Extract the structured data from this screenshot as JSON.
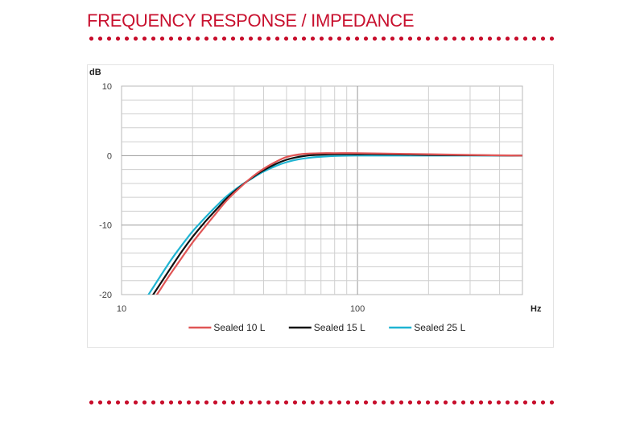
{
  "page": {
    "title": "FREQUENCY RESPONSE / IMPEDANCE",
    "accent_color": "#c8102e"
  },
  "chart_data": {
    "type": "line",
    "title": "",
    "xlabel": "Hz",
    "ylabel": "dB",
    "xscale": "log",
    "xlim": [
      10,
      500
    ],
    "ylim": [
      -20,
      10
    ],
    "x_ticks": [
      10,
      100
    ],
    "x_tick_labels": [
      "10",
      "100"
    ],
    "y_ticks": [
      10,
      0,
      -10,
      -20
    ],
    "y_tick_labels": [
      "10",
      "0",
      "-10",
      "-20"
    ],
    "grid": true,
    "legend_position": "bottom",
    "series": [
      {
        "name": "Sealed 10 L",
        "color": "#e05555",
        "x": [
          14,
          16,
          18,
          20,
          22.5,
          25,
          28,
          32,
          36,
          40,
          45,
          50,
          56,
          63,
          71,
          80,
          100,
          125,
          160,
          200,
          300,
          500
        ],
        "y": [
          -20.2,
          -17.2,
          -14.7,
          -12.5,
          -10.3,
          -8.4,
          -6.4,
          -4.5,
          -3.0,
          -1.9,
          -0.9,
          -0.2,
          0.15,
          0.3,
          0.35,
          0.35,
          0.35,
          0.3,
          0.25,
          0.2,
          0.1,
          0.0
        ]
      },
      {
        "name": "Sealed 15 L",
        "color": "#111111",
        "x": [
          13.5,
          16,
          18,
          20,
          22.5,
          25,
          28,
          32,
          36,
          40,
          45,
          50,
          56,
          63,
          71,
          80,
          100,
          125,
          160,
          200,
          300,
          500
        ],
        "y": [
          -20.2,
          -16.4,
          -13.8,
          -11.7,
          -9.6,
          -7.9,
          -6.1,
          -4.4,
          -3.1,
          -2.1,
          -1.2,
          -0.6,
          -0.2,
          0.05,
          0.15,
          0.2,
          0.2,
          0.2,
          0.15,
          0.1,
          0.05,
          0.0
        ]
      },
      {
        "name": "Sealed 25 L",
        "color": "#1fb4d2",
        "x": [
          12.9,
          16,
          18,
          20,
          22.5,
          25,
          28,
          32,
          36,
          40,
          45,
          50,
          56,
          63,
          71,
          80,
          100,
          125,
          160,
          200,
          300,
          500
        ],
        "y": [
          -20.2,
          -15.3,
          -12.9,
          -10.9,
          -9.0,
          -7.4,
          -5.8,
          -4.3,
          -3.2,
          -2.3,
          -1.5,
          -0.95,
          -0.55,
          -0.3,
          -0.15,
          -0.05,
          0.0,
          0.0,
          0.0,
          0.0,
          0.0,
          0.0
        ]
      }
    ]
  }
}
